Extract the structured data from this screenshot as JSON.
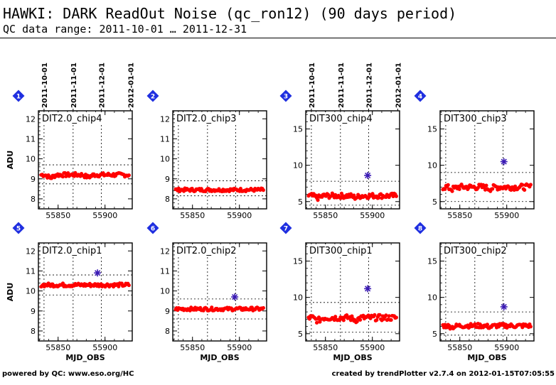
{
  "title": "HAWKI: DARK ReadOut Noise (qc_ron12) (90 days period)",
  "subtitle": "QC data range: 2011-10-01 … 2011-12-31",
  "footer_left": "powered by QC: www.eso.org/HC",
  "footer_right": "created by trendPlotter v2.7.4 on 2012-01-15T07:05:55",
  "colors": {
    "points": "#ff0000",
    "outlier": "#3a1ab4",
    "badge": "#1f2fe0"
  },
  "chart_data": {
    "type": "scatter",
    "xlabel": "MJD_OBS",
    "ylabel": "ADU",
    "xlim": [
      55829,
      55929
    ],
    "xticks": [
      55850,
      55900
    ],
    "date_ticks": [
      {
        "label": "2011-10-01",
        "x": 55835
      },
      {
        "label": "2011-11-01",
        "x": 55866
      },
      {
        "label": "2011-12-01",
        "x": 55896
      },
      {
        "label": "2012-01-01",
        "x": 55927
      }
    ],
    "panels": [
      {
        "num": "1",
        "name": "DIT2.0_chip4",
        "ylim": [
          7.5,
          12.4
        ],
        "yticks": [
          8,
          9,
          10,
          11,
          12
        ],
        "mean": 9.2,
        "band": [
          8.75,
          9.7
        ],
        "noise": 0.1,
        "dip": 0.15,
        "ylabel": true,
        "outliers": []
      },
      {
        "num": "2",
        "name": "DIT2.0_chip3",
        "ylim": [
          7.5,
          12.4
        ],
        "yticks": [
          8,
          9,
          10,
          11,
          12
        ],
        "mean": 8.45,
        "band": [
          8.15,
          8.9
        ],
        "noise": 0.08,
        "dip": 0.0,
        "ylabel": false,
        "outliers": []
      },
      {
        "num": "3",
        "name": "DIT300_chip4",
        "ylim": [
          4.0,
          17.5
        ],
        "yticks": [
          5,
          10,
          15
        ],
        "mean": 5.8,
        "band": [
          4.5,
          7.8
        ],
        "noise": 0.35,
        "dip": 0.3,
        "ylabel": false,
        "outliers": [
          {
            "x": 55895,
            "y": 8.6
          }
        ]
      },
      {
        "num": "4",
        "name": "DIT300_chip3",
        "ylim": [
          4.0,
          17.5
        ],
        "yticks": [
          5,
          10,
          15
        ],
        "mean": 7.0,
        "band": [
          5.0,
          9.0
        ],
        "noise": 0.4,
        "dip": 0.3,
        "ylabel": false,
        "outliers": [
          {
            "x": 55897,
            "y": 10.5
          }
        ]
      },
      {
        "num": "5",
        "name": "DIT2.0_chip1",
        "ylim": [
          7.5,
          12.4
        ],
        "yticks": [
          8,
          9,
          10,
          11,
          12
        ],
        "mean": 10.3,
        "band": [
          9.8,
          10.8
        ],
        "noise": 0.09,
        "dip": 0.0,
        "ylabel": true,
        "outliers": [
          {
            "x": 55892,
            "y": 10.9
          }
        ]
      },
      {
        "num": "6",
        "name": "DIT2.0_chip2",
        "ylim": [
          7.5,
          12.4
        ],
        "yticks": [
          8,
          9,
          10,
          11,
          12
        ],
        "mean": 9.1,
        "band": [
          8.6,
          9.6
        ],
        "noise": 0.08,
        "dip": 0.0,
        "ylabel": false,
        "outliers": [
          {
            "x": 55895,
            "y": 9.7
          }
        ]
      },
      {
        "num": "7",
        "name": "DIT300_chip1",
        "ylim": [
          4.0,
          17.5
        ],
        "yticks": [
          5,
          10,
          15
        ],
        "mean": 7.2,
        "band": [
          5.2,
          9.3
        ],
        "noise": 0.4,
        "dip": 0.4,
        "ylabel": false,
        "outliers": [
          {
            "x": 55895,
            "y": 11.2
          }
        ]
      },
      {
        "num": "8",
        "name": "DIT300_chip2",
        "ylim": [
          4.0,
          17.5
        ],
        "yticks": [
          5,
          10,
          15
        ],
        "mean": 6.1,
        "band": [
          4.8,
          8.0
        ],
        "noise": 0.3,
        "dip": 0.2,
        "ylabel": false,
        "outliers": [
          {
            "x": 55897,
            "y": 8.7
          }
        ]
      }
    ]
  }
}
